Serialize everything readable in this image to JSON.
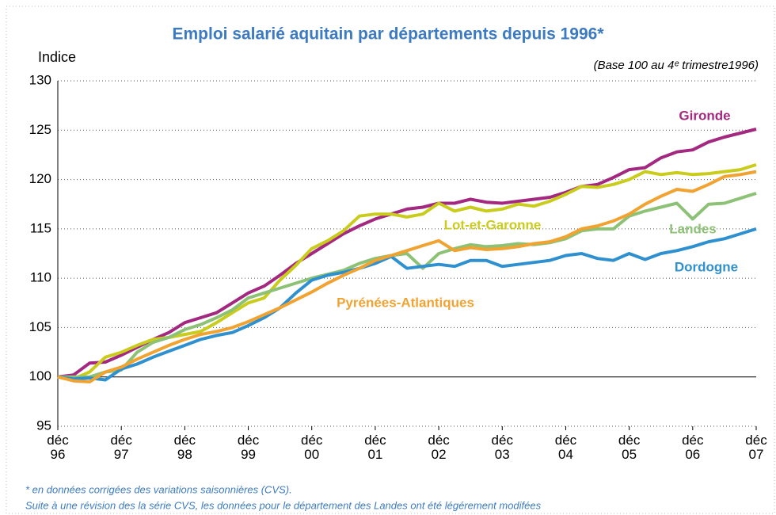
{
  "chart_data": {
    "type": "line",
    "title": "Emploi salarié aquitain par départements depuis 1996*",
    "subtitle": "(Base 100 au 4ᵉ trimestre1996)",
    "ylabel": "Indice",
    "footnotes": [
      "* en données corrigées des variations saisonnières (CVS).",
      "Suite à une révision des la série CVS, les données pour le département des Landes ont été légérement modifées"
    ],
    "categories": [
      "déc\n96",
      null,
      null,
      null,
      "déc\n97",
      null,
      null,
      null,
      "déc\n98",
      null,
      null,
      null,
      "déc\n99",
      null,
      null,
      null,
      "déc\n00",
      null,
      null,
      null,
      "déc\n01",
      null,
      null,
      null,
      "déc\n02",
      null,
      null,
      null,
      "déc\n03",
      null,
      null,
      null,
      "déc\n04",
      null,
      null,
      null,
      "déc\n05",
      null,
      null,
      null,
      "déc\n06",
      null,
      null,
      null,
      "déc\n07"
    ],
    "ylim": [
      95,
      130
    ],
    "yticks": [
      95,
      100,
      105,
      110,
      115,
      120,
      125,
      130
    ],
    "grid": true,
    "reference_line": 100,
    "series": [
      {
        "name": "Gironde",
        "color": "#a3287f",
        "values": [
          100,
          100.2,
          101.4,
          101.5,
          102.2,
          103.0,
          103.8,
          104.5,
          105.5,
          106.0,
          106.5,
          107.5,
          108.5,
          109.2,
          110.3,
          111.5,
          112.5,
          113.5,
          114.5,
          115.3,
          116.0,
          116.5,
          117.0,
          117.2,
          117.6,
          117.6,
          118.0,
          117.7,
          117.6,
          117.8,
          118.0,
          118.2,
          118.7,
          119.3,
          119.5,
          120.2,
          121.0,
          121.2,
          122.2,
          122.8,
          123.0,
          123.8,
          124.3,
          124.7,
          125.1
        ]
      },
      {
        "name": "Lot-et-Garonne",
        "color": "#c9cc1c",
        "values": [
          100,
          99.8,
          100.5,
          102.0,
          102.5,
          103.2,
          103.8,
          104.0,
          104.3,
          104.6,
          105.5,
          106.5,
          107.5,
          108.0,
          109.8,
          111.3,
          113.0,
          113.8,
          114.8,
          116.3,
          116.5,
          116.5,
          116.2,
          116.5,
          117.6,
          116.8,
          117.2,
          116.8,
          117.0,
          117.5,
          117.3,
          117.8,
          118.5,
          119.3,
          119.2,
          119.5,
          120.0,
          120.8,
          120.5,
          120.7,
          120.5,
          120.6,
          120.8,
          121.0,
          121.5
        ]
      },
      {
        "name": "Landes",
        "color": "#8dc276",
        "values": [
          100,
          100,
          100,
          100.5,
          100.7,
          102.5,
          103.5,
          104.0,
          104.8,
          105.3,
          106.0,
          106.8,
          108.0,
          108.5,
          109.0,
          109.5,
          110.0,
          110.4,
          110.8,
          111.5,
          112.0,
          112.3,
          112.5,
          111.0,
          112.5,
          113.0,
          113.4,
          113.2,
          113.3,
          113.5,
          113.4,
          113.6,
          114.0,
          114.8,
          115.0,
          115.0,
          116.3,
          116.8,
          117.2,
          117.6,
          116.0,
          117.5,
          117.6,
          118.1,
          118.6
        ]
      },
      {
        "name": "Dordogne",
        "color": "#2f90d0",
        "values": [
          100,
          99.8,
          99.9,
          99.7,
          100.8,
          101.3,
          102.0,
          102.6,
          103.2,
          103.8,
          104.2,
          104.5,
          105.2,
          106.0,
          107.0,
          108.5,
          109.8,
          110.3,
          110.6,
          111.0,
          111.5,
          112.2,
          111.0,
          111.2,
          111.4,
          111.2,
          111.8,
          111.8,
          111.2,
          111.4,
          111.6,
          111.8,
          112.3,
          112.5,
          112.0,
          111.8,
          112.5,
          111.9,
          112.5,
          112.8,
          113.2,
          113.7,
          114.0,
          114.5,
          115.0
        ]
      },
      {
        "name": "Pyrénées-Atlantiques",
        "color": "#f1a332",
        "values": [
          100,
          99.6,
          99.5,
          100.5,
          101.0,
          101.8,
          102.5,
          103.2,
          103.8,
          104.3,
          104.6,
          105.0,
          105.6,
          106.3,
          107.0,
          107.8,
          108.6,
          109.5,
          110.3,
          111.0,
          111.8,
          112.3,
          112.8,
          113.3,
          113.8,
          112.8,
          113.1,
          112.9,
          113.0,
          113.2,
          113.5,
          113.7,
          114.2,
          115.0,
          115.3,
          115.8,
          116.5,
          117.5,
          118.3,
          119.0,
          118.8,
          119.5,
          120.3,
          120.5,
          120.8
        ]
      }
    ]
  }
}
